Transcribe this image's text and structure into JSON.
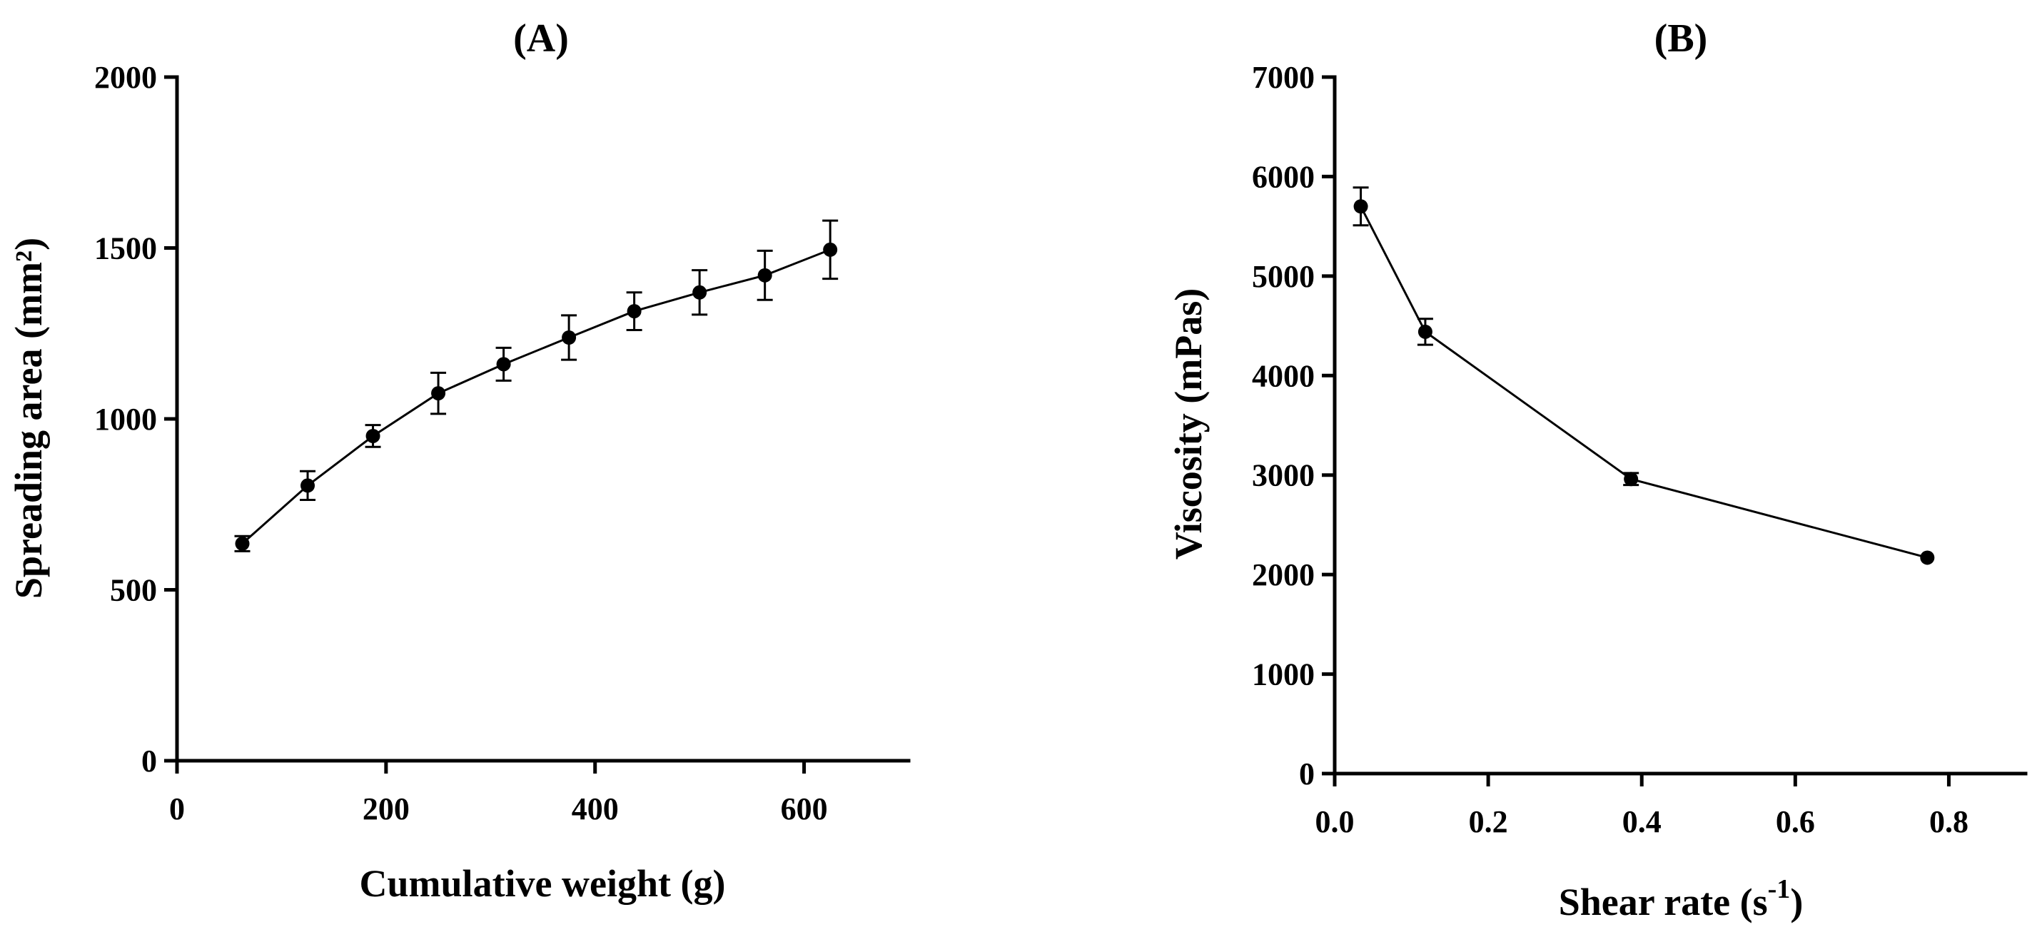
{
  "chart_data": [
    {
      "type": "line",
      "title": "(A)",
      "xlabel": "Cumulative weight (g)",
      "ylabel": "Spreading area  (mm²)",
      "xlim": [
        0,
        700
      ],
      "ylim": [
        0,
        2000
      ],
      "xticks": [
        0,
        200,
        400,
        600
      ],
      "yticks": [
        0,
        500,
        1000,
        1500,
        2000
      ],
      "x_tick_labels": [
        "0",
        "200",
        "400",
        "600"
      ],
      "y_tick_labels": [
        "0",
        "500",
        "1000",
        "1500",
        "2000"
      ],
      "grid": false,
      "series": [
        {
          "name": "Spreading area",
          "x": [
            62.5,
            125,
            187.5,
            250,
            312.5,
            375,
            437.5,
            500,
            562.5,
            625
          ],
          "y": [
            635,
            805,
            950,
            1075,
            1160,
            1238,
            1315,
            1370,
            1420,
            1495
          ],
          "error": [
            22,
            42,
            32,
            60,
            48,
            65,
            55,
            65,
            72,
            85
          ]
        }
      ]
    },
    {
      "type": "line",
      "title": "(B)",
      "xlabel": "Shear rate (s",
      "xlabel_superscript": "-1",
      "xlabel_suffix": ")",
      "ylabel": "Viscosity (mPas)",
      "xlim": [
        0,
        0.9
      ],
      "ylim": [
        0,
        7000
      ],
      "xticks": [
        0.0,
        0.2,
        0.4,
        0.6,
        0.8
      ],
      "yticks": [
        0,
        1000,
        2000,
        3000,
        4000,
        5000,
        6000,
        7000
      ],
      "x_tick_labels": [
        "0.0",
        "0.2",
        "0.4",
        "0.6",
        "0.8"
      ],
      "y_tick_labels": [
        "0",
        "1000",
        "2000",
        "3000",
        "4000",
        "5000",
        "6000",
        "7000"
      ],
      "grid": false,
      "series": [
        {
          "name": "Viscosity",
          "x": [
            0.034,
            0.118,
            0.386,
            0.772
          ],
          "y": [
            5700,
            4440,
            2960,
            2170
          ],
          "error": [
            190,
            130,
            60,
            0
          ]
        }
      ]
    }
  ]
}
